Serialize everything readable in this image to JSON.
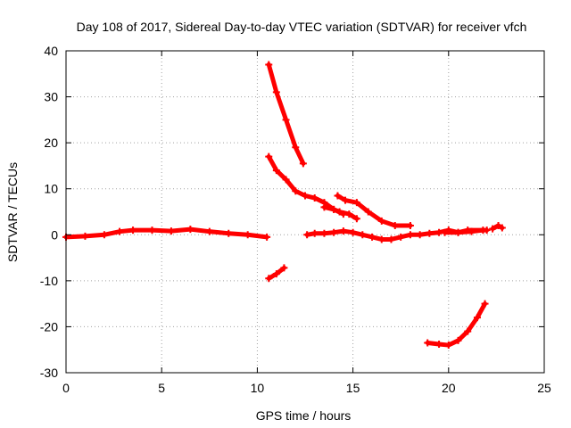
{
  "chart_data": {
    "type": "scatter",
    "title": "Day 108 of 2017, Sidereal Day-to-day VTEC variation (SDTVAR) for receiver vfch",
    "xlabel": "GPS time / hours",
    "ylabel": "SDTVAR / TECUs",
    "xlim": [
      0,
      25
    ],
    "ylim": [
      -30,
      40
    ],
    "x_ticks": [
      "0",
      "5",
      "10",
      "15",
      "20",
      "25"
    ],
    "y_ticks": [
      "-30",
      "-20",
      "-10",
      "0",
      "10",
      "20",
      "30",
      "40"
    ],
    "grid": true,
    "series_color": "#ff0000",
    "segments": [
      {
        "x": [
          0.0,
          1.0,
          2.0,
          2.8,
          3.5,
          4.5,
          5.5,
          6.5,
          7.5,
          8.5,
          9.5,
          10.5
        ],
        "y": [
          -0.5,
          -0.3,
          0.0,
          0.7,
          1.0,
          1.0,
          0.8,
          1.2,
          0.7,
          0.3,
          0.0,
          -0.5
        ]
      },
      {
        "x": [
          10.6,
          11.0,
          11.5,
          12.0,
          12.4
        ],
        "y": [
          37,
          31,
          25,
          19,
          15.5
        ]
      },
      {
        "x": [
          10.6,
          11.0,
          11.5,
          12.0,
          12.5,
          13.0,
          13.5,
          14.0,
          14.5
        ],
        "y": [
          17,
          14,
          12,
          9.5,
          8.5,
          8.0,
          7.0,
          5.5,
          4.5
        ]
      },
      {
        "x": [
          10.6,
          11.0,
          11.4
        ],
        "y": [
          -9.5,
          -8.5,
          -7.2
        ]
      },
      {
        "x": [
          14.2,
          14.6,
          15.2,
          15.8,
          16.5,
          17.2,
          18.0
        ],
        "y": [
          8.5,
          7.5,
          7.0,
          5.0,
          3.0,
          2.0,
          2.0
        ]
      },
      {
        "x": [
          13.5,
          14.0,
          14.3,
          14.8,
          15.2
        ],
        "y": [
          6.0,
          5.5,
          5.0,
          4.5,
          3.5
        ]
      },
      {
        "x": [
          12.6,
          13.0,
          13.5,
          14.0,
          14.5,
          15.0,
          15.5,
          16.0,
          16.5,
          17.0,
          17.5,
          18.0,
          18.5,
          19.0,
          19.5,
          20.0,
          20.5,
          21.0,
          22.0
        ],
        "y": [
          0.0,
          0.3,
          0.3,
          0.5,
          0.8,
          0.5,
          0.0,
          -0.5,
          -1.0,
          -1.0,
          -0.5,
          0.0,
          0.0,
          0.3,
          0.5,
          1.0,
          0.5,
          1.0,
          1.0
        ]
      },
      {
        "x": [
          18.9,
          19.5,
          20.0,
          20.5,
          21.0,
          21.5,
          21.9
        ],
        "y": [
          -23.5,
          -23.8,
          -24.0,
          -23.0,
          -21.0,
          -18.0,
          -15.0
        ]
      },
      {
        "x": [
          19.8,
          20.5,
          21.2,
          21.8
        ],
        "y": [
          0.5,
          0.5,
          0.7,
          1.0
        ]
      },
      {
        "x": [
          22.3,
          22.6,
          22.8
        ],
        "y": [
          1.3,
          2.0,
          1.5
        ]
      }
    ]
  }
}
